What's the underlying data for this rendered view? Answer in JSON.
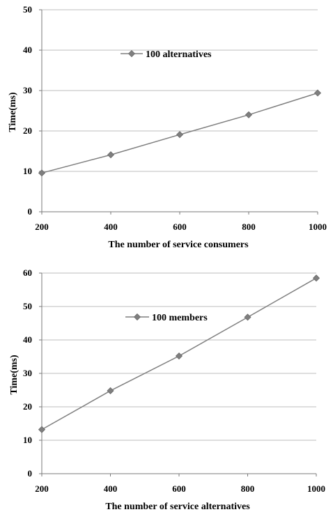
{
  "chart_data": [
    {
      "type": "line",
      "title": "",
      "xlabel": "The number of service consumers",
      "ylabel": "Time(ms)",
      "categories": [
        "200",
        "400",
        "600",
        "800",
        "1000"
      ],
      "x": [
        200,
        400,
        600,
        800,
        1000
      ],
      "ylim": [
        0,
        50
      ],
      "yticks": [
        "0",
        "10",
        "20",
        "30",
        "40",
        "50"
      ],
      "grid": true,
      "legend_position": "top-center",
      "line_color": "#7f7f7f",
      "series": [
        {
          "name": "100 alternatives",
          "values": [
            9.6,
            14.1,
            19.1,
            24.0,
            29.4
          ]
        }
      ]
    },
    {
      "type": "line",
      "title": "",
      "xlabel": "The number of service alternatives",
      "ylabel": "Time(ms)",
      "categories": [
        "200",
        "400",
        "600",
        "800",
        "1000"
      ],
      "x": [
        200,
        400,
        600,
        800,
        1000
      ],
      "ylim": [
        0,
        60
      ],
      "yticks": [
        "0",
        "10",
        "20",
        "30",
        "40",
        "50",
        "60"
      ],
      "grid": true,
      "legend_position": "top-center",
      "line_color": "#7f7f7f",
      "series": [
        {
          "name": "100 members",
          "values": [
            13.2,
            24.8,
            35.2,
            46.8,
            58.5
          ]
        }
      ]
    }
  ]
}
